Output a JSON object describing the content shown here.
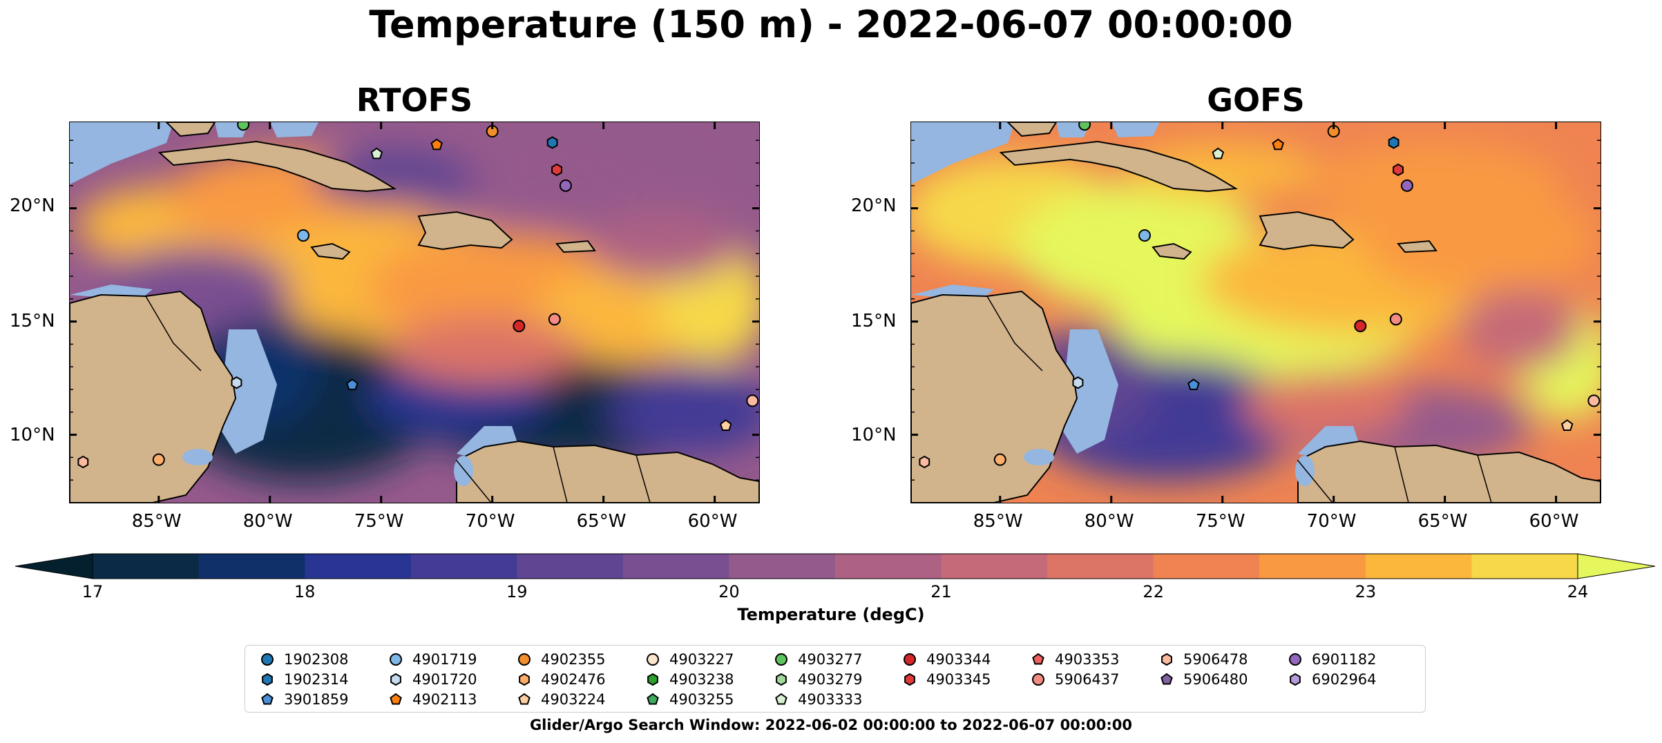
{
  "title": "Temperature (150 m) - 2022-06-07 00:00:00",
  "panels": [
    {
      "title": "RTOFS",
      "variant": "cool"
    },
    {
      "title": "GOFS",
      "variant": "warm"
    }
  ],
  "axes": {
    "lat_labels": [
      "20°N",
      "15°N",
      "10°N"
    ],
    "lon_labels": [
      "85°W",
      "80°W",
      "75°W",
      "70°W",
      "65°W",
      "60°W"
    ]
  },
  "colorbar": {
    "label": "Temperature (degC)",
    "ticks": [
      "17",
      "18",
      "19",
      "20",
      "21",
      "22",
      "23",
      "24"
    ],
    "min": 17,
    "max": 24,
    "step": 0.5,
    "colors": [
      "#0b2a45",
      "#10306a",
      "#283592",
      "#433b95",
      "#5f4592",
      "#7a4f91",
      "#955a8c",
      "#ad6283",
      "#c56a78",
      "#dc7566",
      "#ef8452",
      "#f99a42",
      "#fbb73c",
      "#f6d848"
    ],
    "under_color": "#04202f",
    "over_color": "#e5f75c"
  },
  "legend": {
    "items": [
      {
        "label": "1902308",
        "color": "#1f77b4",
        "marker": "circle"
      },
      {
        "label": "1902314",
        "color": "#1f77b4",
        "marker": "hexagon"
      },
      {
        "label": "3901859",
        "color": "#4a90d9",
        "marker": "pentagon"
      },
      {
        "label": "4901719",
        "color": "#7fb8e8",
        "marker": "circle"
      },
      {
        "label": "4901720",
        "color": "#c6dbef",
        "marker": "hexagon"
      },
      {
        "label": "4902113",
        "color": "#ff7f0e",
        "marker": "pentagon"
      },
      {
        "label": "4902355",
        "color": "#f28e2b",
        "marker": "circle"
      },
      {
        "label": "4902476",
        "color": "#fdae6b",
        "marker": "hexagon"
      },
      {
        "label": "4903224",
        "color": "#fdd0a2",
        "marker": "pentagon"
      },
      {
        "label": "4903227",
        "color": "#fee6ce",
        "marker": "circle"
      },
      {
        "label": "4903238",
        "color": "#2ca02c",
        "marker": "hexagon"
      },
      {
        "label": "4903255",
        "color": "#41ab5d",
        "marker": "pentagon"
      },
      {
        "label": "4903277",
        "color": "#5fc45f",
        "marker": "circle"
      },
      {
        "label": "4903279",
        "color": "#a1d99b",
        "marker": "hexagon"
      },
      {
        "label": "4903333",
        "color": "#d9f0d3",
        "marker": "pentagon"
      },
      {
        "label": "4903344",
        "color": "#d62728",
        "marker": "circle"
      },
      {
        "label": "4903345",
        "color": "#e03b3b",
        "marker": "hexagon"
      },
      {
        "label": "4903353",
        "color": "#f06060",
        "marker": "pentagon"
      },
      {
        "label": "5906437",
        "color": "#f28b82",
        "marker": "circle"
      },
      {
        "label": "5906478",
        "color": "#fcbba1",
        "marker": "hexagon"
      },
      {
        "label": "5906480",
        "color": "#8064a2",
        "marker": "pentagon"
      },
      {
        "label": "6901182",
        "color": "#9467bd",
        "marker": "circle"
      },
      {
        "label": "6902964",
        "color": "#b39ddb",
        "marker": "hexagon"
      }
    ]
  },
  "footnote": "Glider/Argo Search Window: 2022-06-02 00:00:00 to 2022-06-07 00:00:00",
  "map_extent": {
    "lon_min": -89,
    "lon_max": -58,
    "lat_min": 7,
    "lat_max": 23.8
  },
  "observation_points": [
    {
      "lon": -81.2,
      "lat": 23.7,
      "color": "#5fc45f",
      "marker": "circle"
    },
    {
      "lon": -75.2,
      "lat": 22.4,
      "color": "#d9f0d3",
      "marker": "pentagon"
    },
    {
      "lon": -72.5,
      "lat": 22.8,
      "color": "#ff7f0e",
      "marker": "pentagon"
    },
    {
      "lon": -70.0,
      "lat": 23.4,
      "color": "#f28e2b",
      "marker": "circle"
    },
    {
      "lon": -67.3,
      "lat": 22.9,
      "color": "#1f77b4",
      "marker": "hexagon"
    },
    {
      "lon": -67.1,
      "lat": 21.7,
      "color": "#e03b3b",
      "marker": "hexagon"
    },
    {
      "lon": -66.7,
      "lat": 21.0,
      "color": "#9467bd",
      "marker": "circle"
    },
    {
      "lon": -78.5,
      "lat": 18.8,
      "color": "#7fb8e8",
      "marker": "circle"
    },
    {
      "lon": -68.8,
      "lat": 14.8,
      "color": "#d62728",
      "marker": "circle"
    },
    {
      "lon": -67.2,
      "lat": 15.1,
      "color": "#f28b82",
      "marker": "circle"
    },
    {
      "lon": -81.5,
      "lat": 12.3,
      "color": "#c6dbef",
      "marker": "hexagon"
    },
    {
      "lon": -76.3,
      "lat": 12.2,
      "color": "#4a90d9",
      "marker": "pentagon"
    },
    {
      "lon": -58.3,
      "lat": 11.5,
      "color": "#fcbba1",
      "marker": "circle"
    },
    {
      "lon": -59.5,
      "lat": 10.4,
      "color": "#fdd0a2",
      "marker": "pentagon"
    },
    {
      "lon": -88.4,
      "lat": 8.8,
      "color": "#fcbba1",
      "marker": "hexagon"
    },
    {
      "lon": -85.0,
      "lat": 8.9,
      "color": "#fdae6b",
      "marker": "circle"
    }
  ]
}
